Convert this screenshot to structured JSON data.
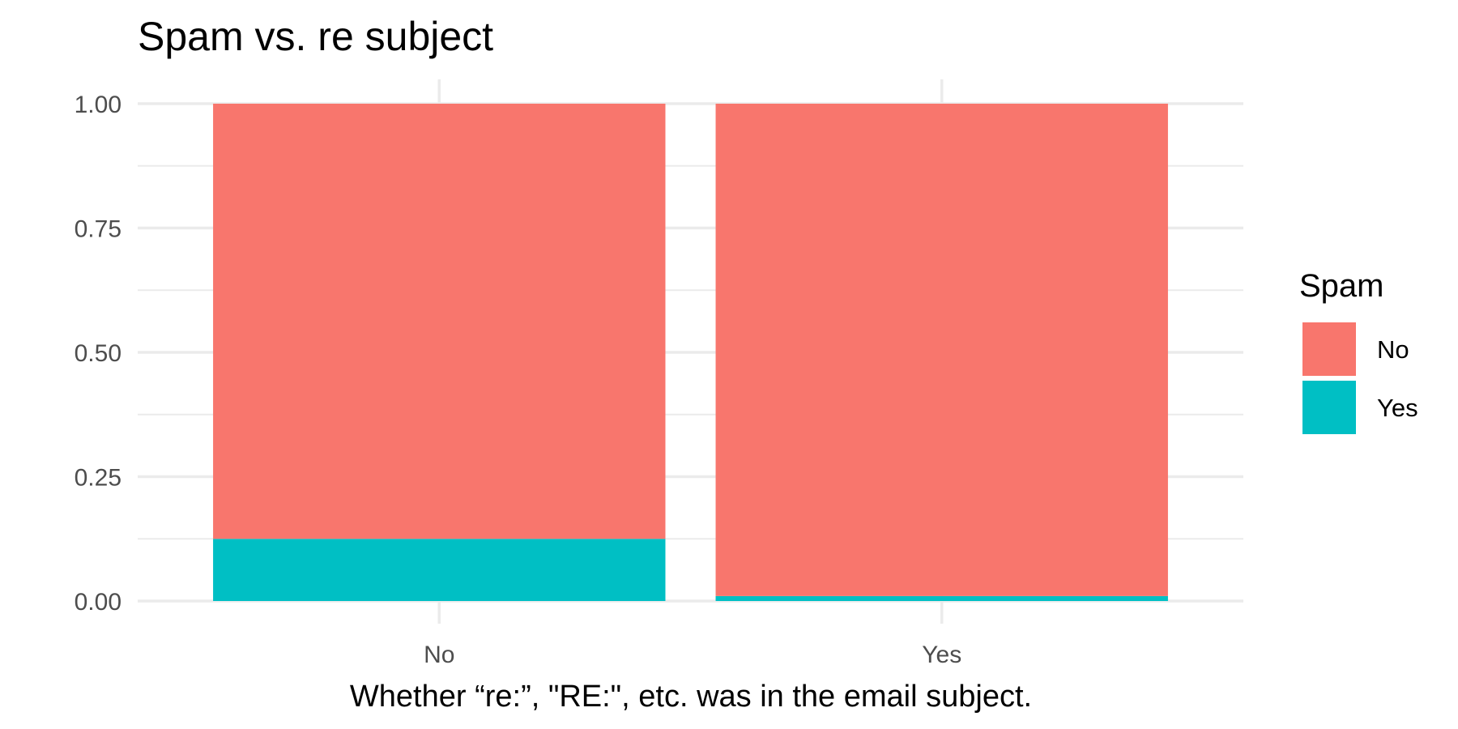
{
  "chart_data": {
    "type": "bar",
    "stacked": true,
    "position": "fill",
    "title": "Spam vs. re subject",
    "xlabel": "Whether “re:”, \"RE:\", etc. was in the email subject.",
    "ylabel": "",
    "categories": [
      "No",
      "Yes"
    ],
    "series": [
      {
        "name": "No",
        "color": "#F8766D",
        "values": [
          0.875,
          0.99
        ]
      },
      {
        "name": "Yes",
        "color": "#00BFC4",
        "values": [
          0.125,
          0.01
        ]
      }
    ],
    "ylim": [
      0,
      1
    ],
    "yticks": [
      "0.00",
      "0.25",
      "0.50",
      "0.75",
      "1.00"
    ],
    "grid": true,
    "legend": {
      "title": "Spam",
      "placement": "right"
    }
  }
}
